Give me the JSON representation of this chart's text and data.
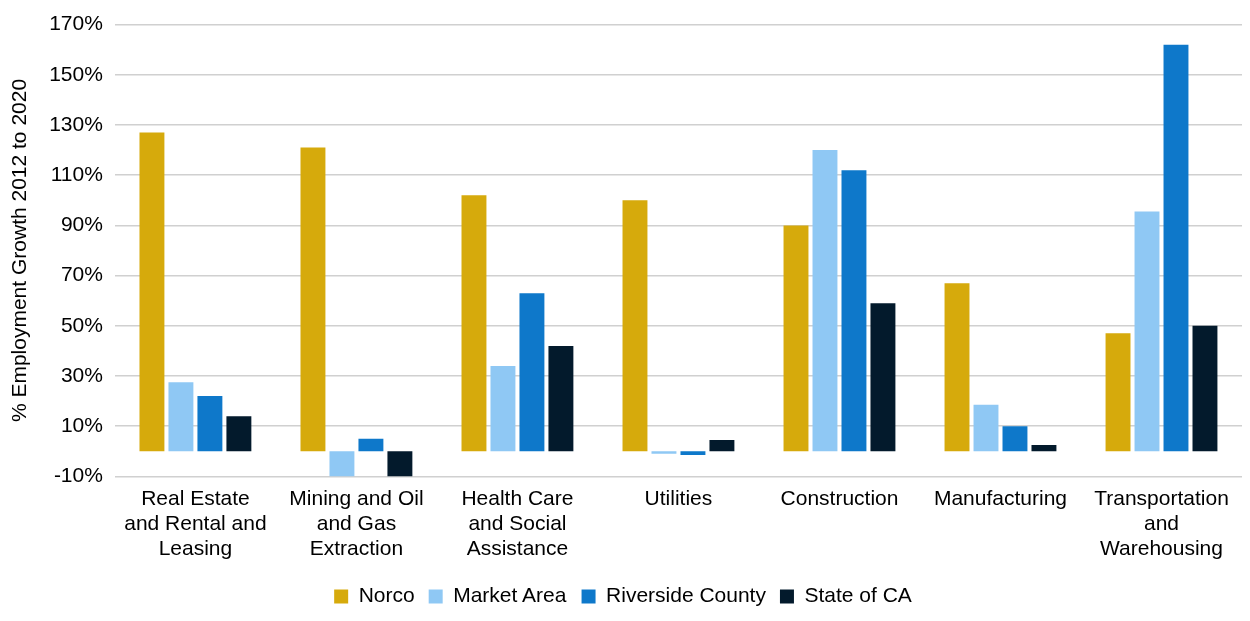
{
  "chart_data": {
    "type": "bar",
    "ylabel": "% Employment Growth 2012 to 2020",
    "categories": [
      "Real Estate and Rental and Leasing",
      "Mining and Oil and Gas Extraction",
      "Health Care and Social Assistance",
      "Utilities",
      "Construction",
      "Manufacturing",
      "Transportation and Warehousing"
    ],
    "series": [
      {
        "name": "Norco",
        "color": "#d6aa0c",
        "values": [
          127,
          121,
          102,
          100,
          90,
          67,
          47
        ]
      },
      {
        "name": "Market Area",
        "color": "#8fc8f4",
        "values": [
          27.5,
          -10,
          34,
          -1,
          120,
          18.5,
          95.5
        ]
      },
      {
        "name": "Riverside County",
        "color": "#0e78ca",
        "values": [
          22,
          5,
          63,
          -1.5,
          112,
          10,
          162
        ]
      },
      {
        "name": "State of CA",
        "color": "#031a2c",
        "values": [
          14,
          -10,
          42,
          4.5,
          59,
          2.5,
          50
        ]
      }
    ],
    "ylim": [
      -10,
      170
    ],
    "yticks": [
      {
        "value": -10,
        "label": "-10%"
      },
      {
        "value": 10,
        "label": "10%"
      },
      {
        "value": 30,
        "label": "30%"
      },
      {
        "value": 50,
        "label": "50%"
      },
      {
        "value": 70,
        "label": "70%"
      },
      {
        "value": 90,
        "label": "90%"
      },
      {
        "value": 110,
        "label": "110%"
      },
      {
        "value": 130,
        "label": "130%"
      },
      {
        "value": 150,
        "label": "150%"
      },
      {
        "value": 170,
        "label": "170%"
      }
    ],
    "grid": "y",
    "legend": "bottom"
  }
}
